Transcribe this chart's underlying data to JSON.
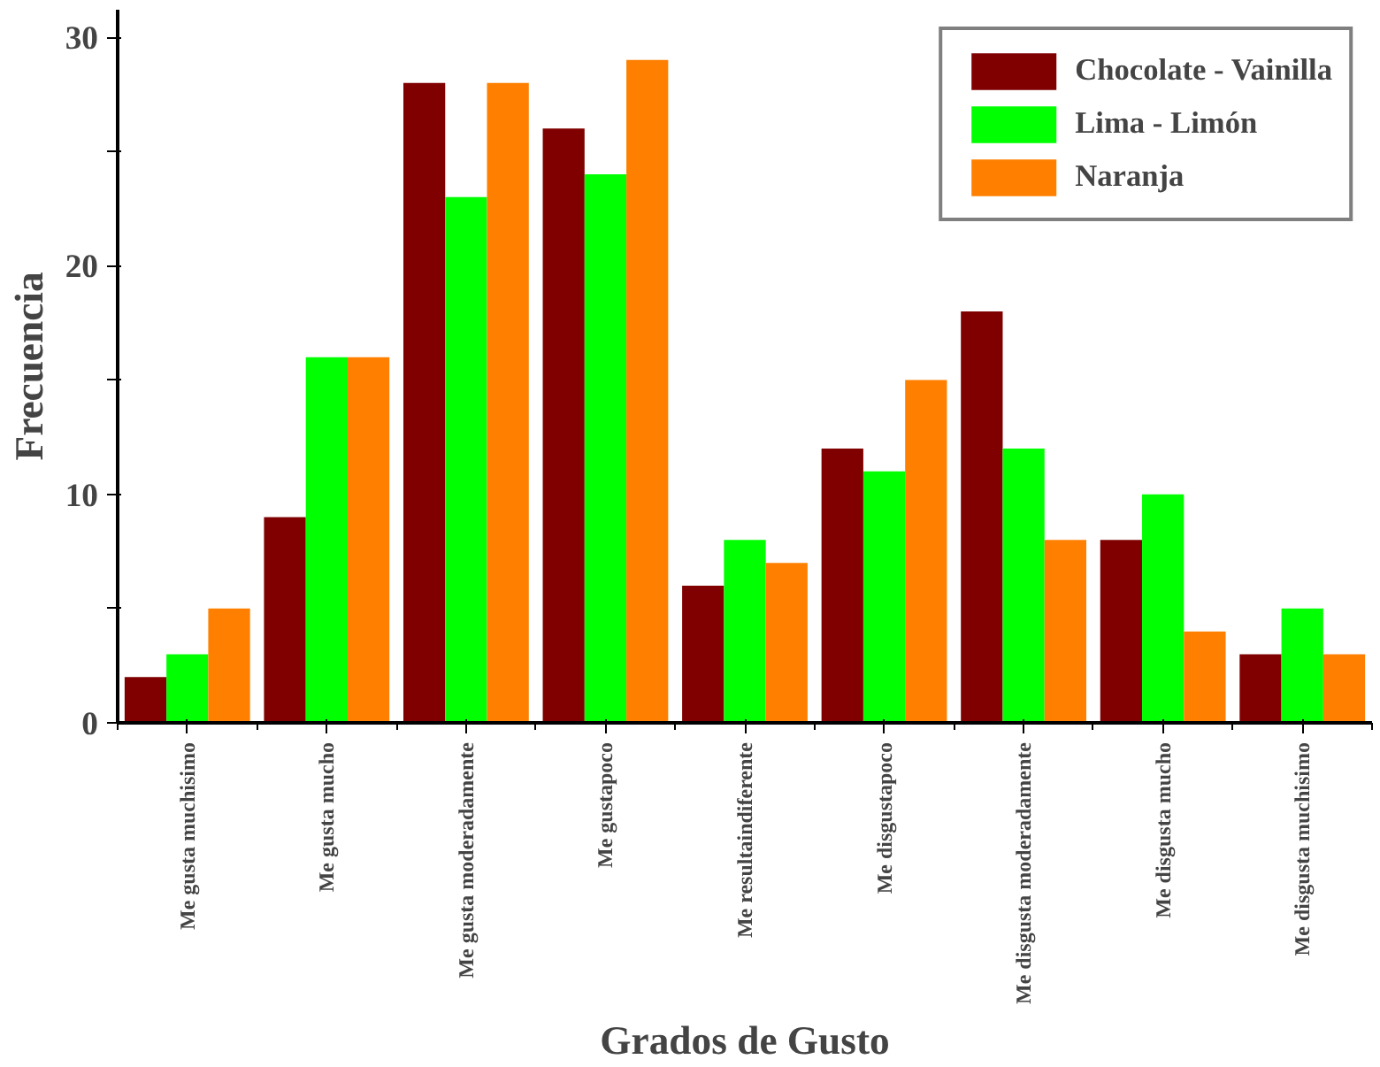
{
  "chart_data": {
    "type": "bar",
    "xlabel": "Grados de Gusto",
    "ylabel": "Frecuencia",
    "categories": [
      "Me gusta muchisimo",
      "Me gusta mucho",
      "Me gusta moderadamente",
      "Me gustapoco",
      "Me resultaindiferente",
      "Me disgustapoco",
      "Me disgusta moderadamente",
      "Me disgusta mucho",
      "Me disgusta muchisimo"
    ],
    "series": [
      {
        "name": "Chocolate - Vainilla",
        "color": "#800000",
        "values": [
          2,
          9,
          28,
          26,
          6,
          12,
          18,
          8,
          3
        ]
      },
      {
        "name": "Lima - Limón",
        "color": "#00ff00",
        "values": [
          3,
          16,
          23,
          24,
          8,
          11,
          12,
          10,
          5
        ]
      },
      {
        "name": "Naranja",
        "color": "#ff8000",
        "values": [
          5,
          16,
          28,
          29,
          7,
          15,
          8,
          4,
          3
        ]
      }
    ],
    "ylim": [
      0,
      31.2
    ],
    "yticks": [
      0,
      {
        "value": 5,
        "label": null
      },
      10,
      {
        "value": 15,
        "label": null
      },
      20,
      {
        "value": 25,
        "label": null
      },
      30
    ],
    "grid": false,
    "legend": "top right"
  }
}
